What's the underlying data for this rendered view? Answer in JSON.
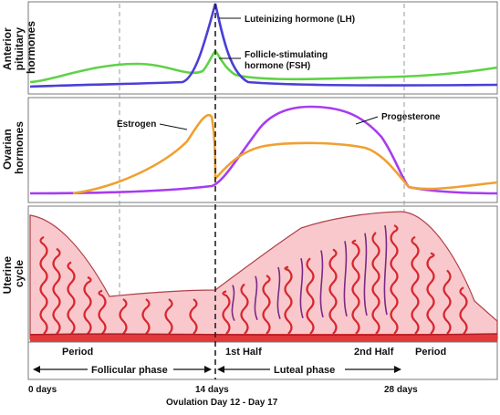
{
  "panels": {
    "top": {
      "ylabel_line1": "Anterior",
      "ylabel_line2": "pituitary",
      "ylabel_line3": "hormones"
    },
    "middle": {
      "ylabel_line1": "Ovarian",
      "ylabel_line2": "hormones"
    },
    "bottom": {
      "ylabel_line1": "Uterine",
      "ylabel_line2": "cycle"
    }
  },
  "curves": {
    "lh": {
      "label": "Luteinizing hormone (LH)",
      "color": "#4b3fd6"
    },
    "fsh": {
      "label_line1": "Follicle-stimulating",
      "label_line2": "hormone (FSH)",
      "color": "#5fd247"
    },
    "estrogen": {
      "label": "Estrogen",
      "color": "#f0a030"
    },
    "progesterone": {
      "label": "Progesterone",
      "color": "#a63cf0"
    }
  },
  "uterine": {
    "period_left": "Period",
    "first_half": "1st Half",
    "second_half": "2nd Half",
    "period_right": "Period",
    "tissue_color": "#f8c8cc",
    "vessel_color": "#d8262e"
  },
  "phases": {
    "follicular": "Follicular phase",
    "luteal": "Luteal phase"
  },
  "axis": {
    "ticks": [
      "0 days",
      "14 days",
      "28 days"
    ],
    "ovulation_note": "Ovulation Day 12 - Day 17"
  }
}
